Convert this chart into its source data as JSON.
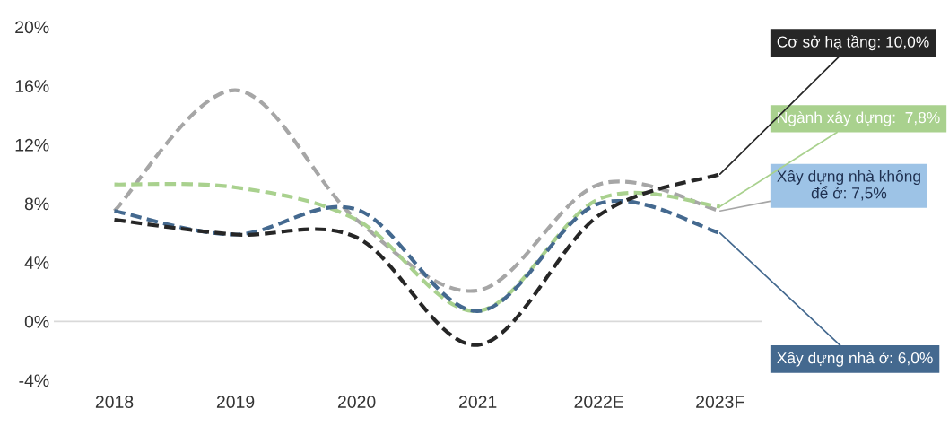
{
  "chart_data": {
    "type": "line",
    "categories": [
      "2018",
      "2019",
      "2020",
      "2021",
      "2022E",
      "2023F"
    ],
    "ylim": [
      -4,
      20
    ],
    "yticks": [
      {
        "value": -4,
        "label": "-4%"
      },
      {
        "value": 0,
        "label": "0%"
      },
      {
        "value": 4,
        "label": "4%"
      },
      {
        "value": 8,
        "label": "8%"
      },
      {
        "value": 12,
        "label": "12%"
      },
      {
        "value": 16,
        "label": "16%"
      },
      {
        "value": 20,
        "label": "20%"
      }
    ],
    "grid": false,
    "legend": false,
    "marker": "none",
    "line_style": "dashed",
    "ref_lines": [
      {
        "axis": "y",
        "value": 0,
        "label": null,
        "color": "#d9d9d9"
      }
    ],
    "series": [
      {
        "name": "Xây dựng nhà không\nđể ở: 7,5%",
        "color": "#a6a6a6",
        "values": [
          7.5,
          15.7,
          6.9,
          2.1,
          9.3,
          7.5
        ]
      },
      {
        "name": "Ngành xây dựng:  7,8%",
        "color": "#a9d18e",
        "values": [
          9.3,
          9.1,
          6.9,
          0.7,
          8.3,
          7.8
        ]
      },
      {
        "name": "Xây dựng nhà ở: 6,0%",
        "color": "#44698f",
        "values": [
          7.5,
          5.9,
          7.6,
          0.7,
          8.0,
          6.0
        ]
      },
      {
        "name": "Cơ sở hạ tầng: 10,0%",
        "color": "#262626",
        "values": [
          6.9,
          5.9,
          5.7,
          -1.6,
          7.2,
          10.0
        ]
      }
    ]
  }
}
